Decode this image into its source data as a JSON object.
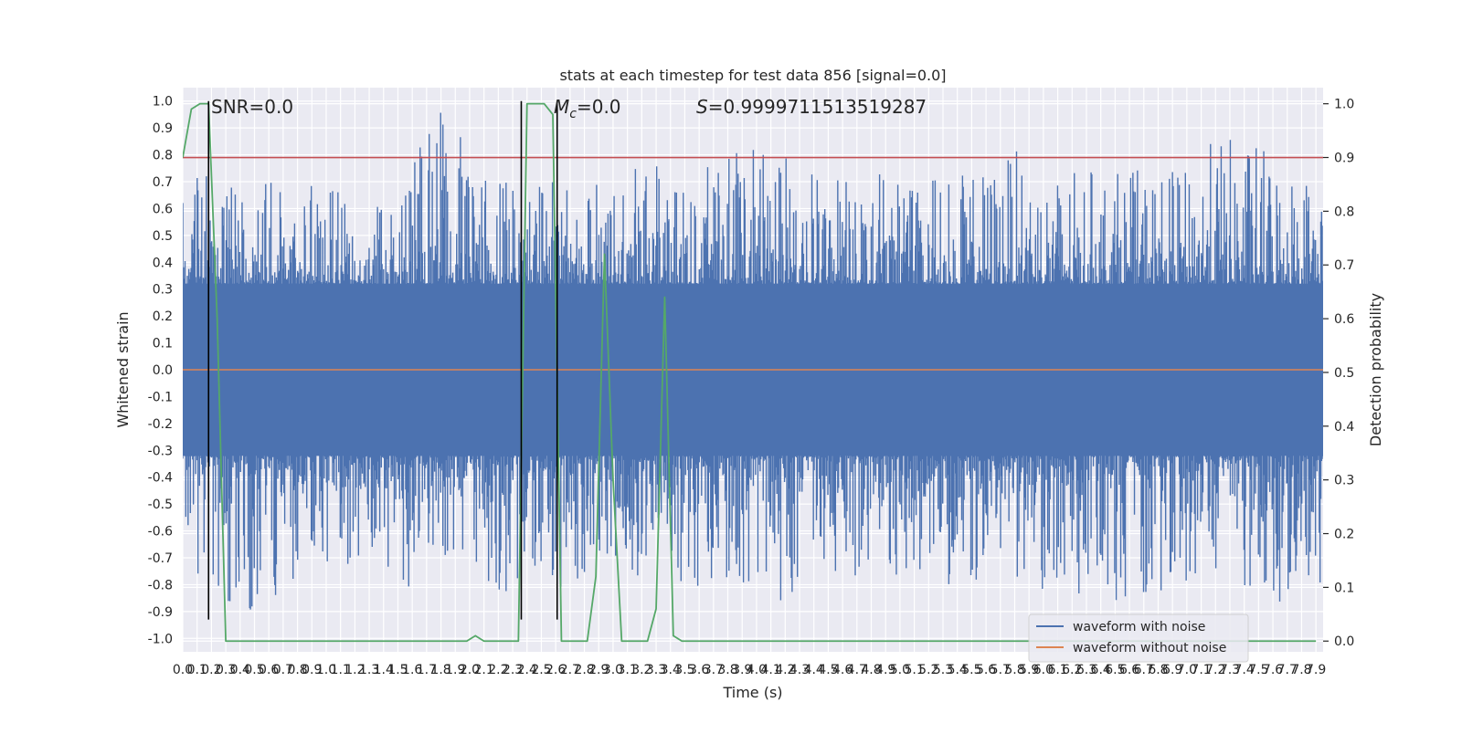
{
  "chart_data": {
    "type": "line",
    "title": "stats at each timestep for test data 856 [signal=0.0]",
    "xlabel": "Time (s)",
    "ylabel": "Whitened strain",
    "ylabel_right": "Detection probability",
    "xlim": [
      0.0,
      7.95
    ],
    "ylim": [
      -1.05,
      1.05
    ],
    "ylim_right": [
      -0.02,
      1.03
    ],
    "x_ticks": [
      "0.0",
      "0.1",
      "0.2",
      "0.3",
      "0.4",
      "0.5",
      "0.6",
      "0.7",
      "0.8",
      "0.9",
      "1.0",
      "1.1",
      "1.2",
      "1.3",
      "1.4",
      "1.5",
      "1.6",
      "1.7",
      "1.8",
      "1.9",
      "2.0",
      "2.1",
      "2.2",
      "2.3",
      "2.4",
      "2.5",
      "2.6",
      "2.7",
      "2.8",
      "2.9",
      "3.0",
      "3.1",
      "3.2",
      "3.3",
      "3.4",
      "3.5",
      "3.6",
      "3.7",
      "3.8",
      "3.9",
      "4.0",
      "4.1",
      "4.2",
      "4.3",
      "4.4",
      "4.5",
      "4.6",
      "4.7",
      "4.8",
      "4.9",
      "5.0",
      "5.1",
      "5.2",
      "5.3",
      "5.4",
      "5.5",
      "5.6",
      "5.7",
      "5.8",
      "5.9",
      "6.0",
      "6.1",
      "6.2",
      "6.3",
      "6.4",
      "6.5",
      "6.6",
      "6.7",
      "6.8",
      "6.9",
      "7.0",
      "7.1",
      "7.2",
      "7.3",
      "7.4",
      "7.5",
      "7.6",
      "7.7",
      "7.8",
      "7.9"
    ],
    "y_ticks_left": [
      "1.0",
      "0.9",
      "0.8",
      "0.7",
      "0.6",
      "0.5",
      "0.4",
      "0.3",
      "0.2",
      "0.1",
      "0.0",
      "-0.1",
      "-0.2",
      "-0.3",
      "-0.4",
      "-0.5",
      "-0.6",
      "-0.7",
      "-0.8",
      "-0.9",
      "-1.0"
    ],
    "y_ticks_right": [
      "1.0",
      "0.9",
      "0.8",
      "0.7",
      "0.6",
      "0.5",
      "0.4",
      "0.3",
      "0.2",
      "0.1",
      "0.0"
    ],
    "grid": true,
    "legend_position": "bottom-right",
    "annotations": {
      "snr": "SNR=0.0",
      "mc_symbol": "M",
      "mc_sub": "c",
      "mc_value": "=0.0",
      "s_symbol": "S",
      "s_value": "=0.9999711513519287"
    },
    "series": [
      {
        "name": "waveform with noise",
        "axis": "left",
        "color": "#4c72b0",
        "style": "dense-noise",
        "envelope": {
          "x": [
            0.0,
            0.5,
            1.0,
            1.5,
            1.8,
            1.9,
            2.0,
            2.5,
            3.0,
            3.2,
            3.5,
            4.0,
            4.2,
            4.5,
            5.0,
            5.5,
            5.8,
            6.0,
            6.5,
            7.0,
            7.2,
            7.5,
            7.9
          ],
          "max": [
            0.78,
            0.75,
            0.68,
            0.65,
            1.0,
            1.0,
            0.7,
            0.72,
            0.7,
            0.82,
            0.72,
            0.88,
            0.82,
            0.73,
            0.75,
            0.73,
            0.82,
            0.74,
            0.75,
            0.74,
            0.88,
            0.85,
            0.73
          ],
          "min": [
            -0.82,
            -0.93,
            -0.72,
            -0.82,
            -0.78,
            -0.72,
            -0.8,
            -0.87,
            -0.75,
            -0.78,
            -0.82,
            -0.8,
            -0.88,
            -0.75,
            -0.8,
            -0.8,
            -0.8,
            -0.82,
            -0.88,
            -0.8,
            -0.75,
            -0.85,
            -0.9
          ],
          "core": 0.32
        }
      },
      {
        "name": "waveform without noise",
        "axis": "left",
        "color": "#dd8452",
        "x": [
          0.0,
          7.95
        ],
        "y": [
          0.0,
          0.0
        ]
      },
      {
        "name": "",
        "axis": "right",
        "color": "#55a868",
        "x": [
          0.0,
          0.06,
          0.12,
          0.18,
          0.24,
          0.3,
          0.36,
          0.42,
          0.48,
          1.98,
          2.04,
          2.1,
          2.16,
          2.28,
          2.34,
          2.4,
          2.46,
          2.52,
          2.58,
          2.64,
          2.7,
          2.76,
          2.82,
          2.88,
          2.94,
          3.0,
          3.06,
          3.12,
          3.18,
          3.24,
          3.3,
          3.36,
          3.42,
          3.48,
          3.54,
          3.6,
          3.66,
          7.9
        ],
        "y": [
          0.9,
          0.99,
          1.0,
          1.0,
          0.6,
          0.0,
          0.0,
          0.0,
          0.0,
          0.0,
          0.01,
          0.0,
          0.0,
          0.0,
          0.0,
          1.0,
          1.0,
          1.0,
          0.98,
          0.0,
          0.0,
          0.0,
          0.0,
          0.12,
          0.72,
          0.3,
          0.0,
          0.0,
          0.0,
          0.0,
          0.06,
          0.64,
          0.01,
          0.0,
          0.0,
          0.0,
          0.0,
          0.0
        ]
      }
    ],
    "threshold_line": {
      "axis": "right",
      "y": 0.9,
      "color": "#c44e52"
    },
    "vertical_lines": {
      "x": [
        0.18,
        2.36,
        2.61
      ],
      "y_top": 1.0,
      "y_bottom": -0.93,
      "color": "#000000"
    }
  }
}
